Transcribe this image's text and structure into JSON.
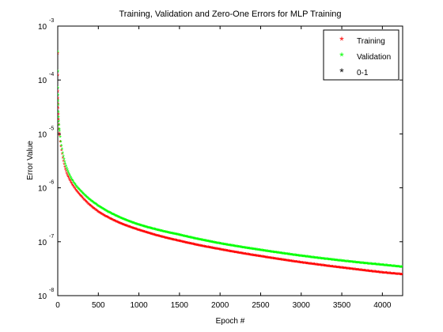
{
  "chart_data": {
    "type": "scatter",
    "title": "Training, Validation and Zero-One Errors for MLP Training",
    "xlabel": "Epoch #",
    "ylabel": "Error Value",
    "xlim": [
      0,
      4250
    ],
    "ylim": [
      1e-08,
      0.001
    ],
    "yscale": "log",
    "grid": false,
    "legend_position": "top-right",
    "x_ticks": [
      "0",
      "500",
      "1000",
      "1500",
      "2000",
      "2500",
      "3000",
      "3500",
      "4000"
    ],
    "y_tick_bases": [
      "10",
      "10",
      "10",
      "10",
      "10",
      "10"
    ],
    "y_tick_exponents": [
      "-3",
      "-4",
      "-5",
      "-6",
      "-7",
      "-8"
    ],
    "marker": "*",
    "colors": {
      "Training": "#ff0000",
      "Validation": "#00ff00",
      "0-1": "#000000"
    },
    "series": [
      {
        "name": "Training",
        "x": [
          1,
          2,
          3,
          5,
          10,
          20,
          50,
          100,
          200,
          300,
          500,
          750,
          1000,
          1500,
          2000,
          2500,
          3000,
          3500,
          4000,
          4250
        ],
        "y": [
          0.0003,
          0.00012,
          6e-05,
          3.5e-05,
          1.8e-05,
          1e-05,
          4.5e-06,
          2e-06,
          1e-06,
          6.5e-07,
          3.5e-07,
          2.2e-07,
          1.6e-07,
          1e-07,
          7e-08,
          5.2e-08,
          4e-08,
          3.2e-08,
          2.6e-08,
          2.4e-08
        ]
      },
      {
        "name": "Validation",
        "x": [
          1,
          2,
          3,
          5,
          10,
          20,
          50,
          100,
          200,
          300,
          500,
          750,
          1000,
          1500,
          2000,
          2500,
          3000,
          3500,
          4000,
          4250
        ],
        "y": [
          0.00032,
          0.00014,
          7e-05,
          4e-05,
          2e-05,
          1.2e-05,
          5.5e-06,
          2.5e-06,
          1.2e-06,
          8e-07,
          4.5e-07,
          2.8e-07,
          2e-07,
          1.3e-07,
          9e-08,
          6.8e-08,
          5.3e-08,
          4.3e-08,
          3.6e-08,
          3.3e-08
        ]
      },
      {
        "name": "0-1",
        "x": [],
        "y": []
      }
    ]
  }
}
